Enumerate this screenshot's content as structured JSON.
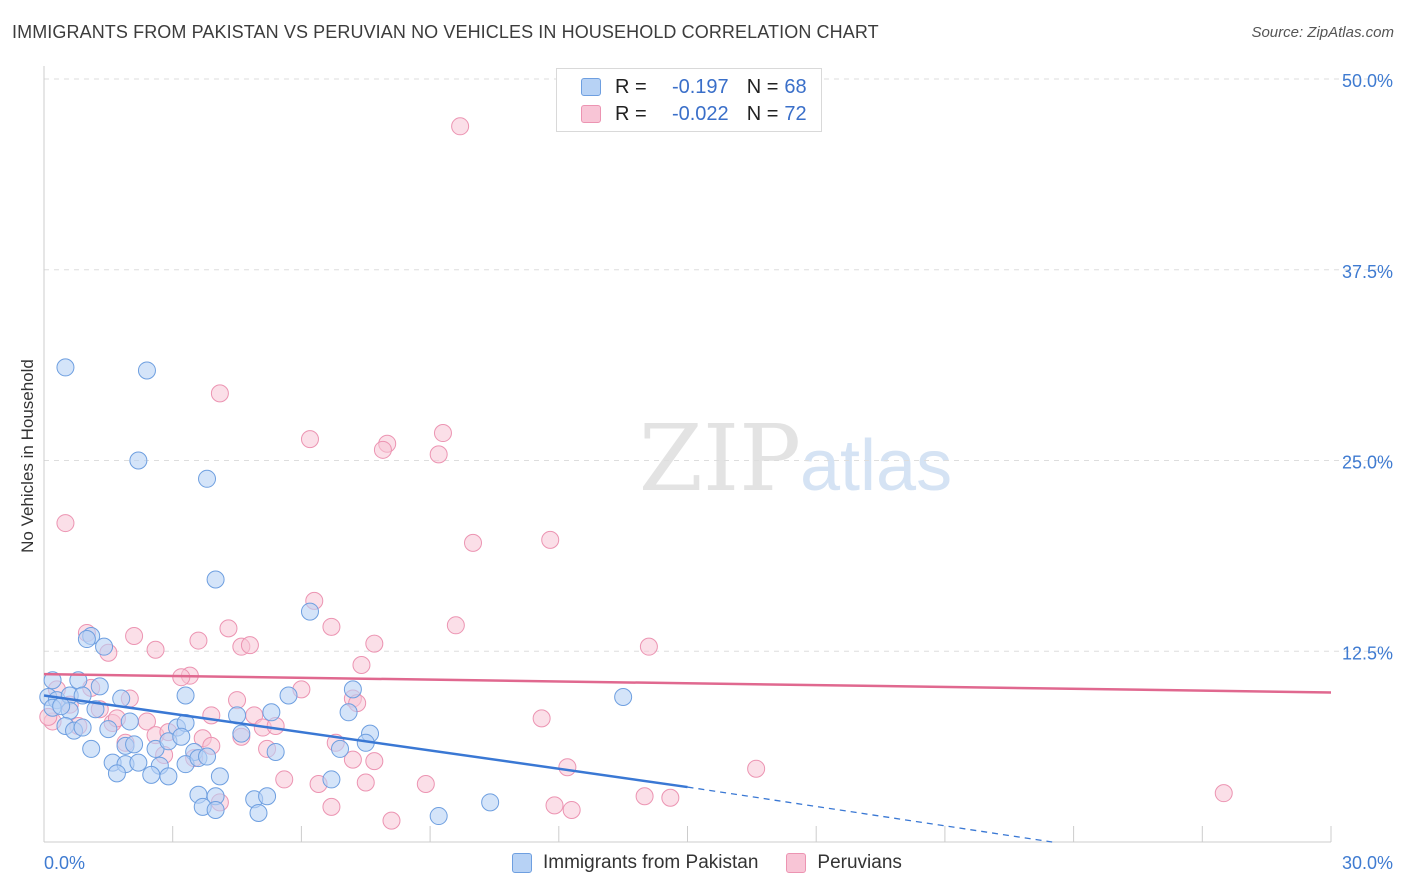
{
  "header": {
    "title": "IMMIGRANTS FROM PAKISTAN VS PERUVIAN NO VEHICLES IN HOUSEHOLD CORRELATION CHART",
    "source": "Source: ZipAtlas.com"
  },
  "watermark": {
    "zip": "ZIP",
    "atlas": "atlas"
  },
  "legend": {
    "r_label": "R =",
    "n_label": "N =",
    "series1": {
      "r": "-0.197",
      "n": "68"
    },
    "series2": {
      "r": "-0.022",
      "n": "72"
    }
  },
  "bottom_legend": {
    "series1": "Immigrants from Pakistan",
    "series2": "Peruvians"
  },
  "colors": {
    "blue_fill": "#b7d2f5",
    "blue_stroke": "#6e9fe0",
    "blue_line": "#3a78d4",
    "pink_fill": "#f8c5d6",
    "pink_stroke": "#ec94b2",
    "pink_line": "#e0688f",
    "tick_text": "#3f7bd1",
    "grid": "#dddddd"
  },
  "chart_data": {
    "type": "scatter",
    "title": "IMMIGRANTS FROM PAKISTAN VS PERUVIAN NO VEHICLES IN HOUSEHOLD CORRELATION CHART",
    "xlabel": "",
    "ylabel": "No Vehicles in Household",
    "xlim": [
      0,
      30
    ],
    "ylim": [
      0,
      50
    ],
    "x_tick_labels": [
      "0.0%",
      "30.0%"
    ],
    "y_ticks": [
      12.5,
      25.0,
      37.5,
      50.0
    ],
    "y_tick_labels": [
      "12.5%",
      "25.0%",
      "37.5%",
      "50.0%"
    ],
    "series": [
      {
        "name": "Immigrants from Pakistan",
        "r": -0.197,
        "n": 68,
        "trend": {
          "x": [
            0,
            15
          ],
          "y": [
            9.6,
            3.6
          ],
          "dashed_to": [
            23.5,
            0
          ]
        },
        "points": [
          [
            0.5,
            31.1
          ],
          [
            2.4,
            30.9
          ],
          [
            2.2,
            25.0
          ],
          [
            3.8,
            23.8
          ],
          [
            4.0,
            17.2
          ],
          [
            6.2,
            15.1
          ],
          [
            1.1,
            13.5
          ],
          [
            1.4,
            12.8
          ],
          [
            1.0,
            13.3
          ],
          [
            0.2,
            10.6
          ],
          [
            0.8,
            10.6
          ],
          [
            1.3,
            10.2
          ],
          [
            0.1,
            9.5
          ],
          [
            0.3,
            9.3
          ],
          [
            0.6,
            9.6
          ],
          [
            0.9,
            9.6
          ],
          [
            1.8,
            9.4
          ],
          [
            3.3,
            9.6
          ],
          [
            5.7,
            9.6
          ],
          [
            7.2,
            10.0
          ],
          [
            13.5,
            9.5
          ],
          [
            0.2,
            8.8
          ],
          [
            0.6,
            8.6
          ],
          [
            1.2,
            8.7
          ],
          [
            4.5,
            8.3
          ],
          [
            5.3,
            8.5
          ],
          [
            7.1,
            8.5
          ],
          [
            0.5,
            7.6
          ],
          [
            0.7,
            7.3
          ],
          [
            0.9,
            7.5
          ],
          [
            1.5,
            7.4
          ],
          [
            3.1,
            7.5
          ],
          [
            3.3,
            7.8
          ],
          [
            4.6,
            7.1
          ],
          [
            7.6,
            7.1
          ],
          [
            1.9,
            6.3
          ],
          [
            2.1,
            6.4
          ],
          [
            2.6,
            6.1
          ],
          [
            2.9,
            6.6
          ],
          [
            3.2,
            6.9
          ],
          [
            3.5,
            5.9
          ],
          [
            5.4,
            5.9
          ],
          [
            7.5,
            6.5
          ],
          [
            6.9,
            6.1
          ],
          [
            1.6,
            5.2
          ],
          [
            1.9,
            5.1
          ],
          [
            2.2,
            5.2
          ],
          [
            2.7,
            5.0
          ],
          [
            3.3,
            5.1
          ],
          [
            3.6,
            5.5
          ],
          [
            1.7,
            4.5
          ],
          [
            2.5,
            4.4
          ],
          [
            2.9,
            4.3
          ],
          [
            4.1,
            4.3
          ],
          [
            6.7,
            4.1
          ],
          [
            3.6,
            3.1
          ],
          [
            4.0,
            3.0
          ],
          [
            4.9,
            2.8
          ],
          [
            5.2,
            3.0
          ],
          [
            10.4,
            2.6
          ],
          [
            3.7,
            2.3
          ],
          [
            4.0,
            2.1
          ],
          [
            5.0,
            1.9
          ],
          [
            9.2,
            1.7
          ],
          [
            0.4,
            8.9
          ],
          [
            1.1,
            6.1
          ],
          [
            2.0,
            7.9
          ],
          [
            3.8,
            5.6
          ]
        ]
      },
      {
        "name": "Peruvians",
        "r": -0.022,
        "n": 72,
        "trend": {
          "x": [
            0,
            30
          ],
          "y": [
            11.0,
            9.8
          ]
        },
        "points": [
          [
            9.7,
            46.9
          ],
          [
            4.1,
            29.4
          ],
          [
            6.2,
            26.4
          ],
          [
            8.0,
            26.1
          ],
          [
            7.9,
            25.7
          ],
          [
            9.3,
            26.8
          ],
          [
            9.2,
            25.4
          ],
          [
            0.5,
            20.9
          ],
          [
            10.0,
            19.6
          ],
          [
            11.8,
            19.8
          ],
          [
            6.3,
            15.8
          ],
          [
            4.3,
            14.0
          ],
          [
            6.7,
            14.1
          ],
          [
            9.6,
            14.2
          ],
          [
            1.0,
            13.7
          ],
          [
            2.1,
            13.5
          ],
          [
            3.6,
            13.2
          ],
          [
            4.6,
            12.8
          ],
          [
            4.8,
            12.9
          ],
          [
            7.7,
            13.0
          ],
          [
            14.1,
            12.8
          ],
          [
            1.5,
            12.4
          ],
          [
            2.6,
            12.6
          ],
          [
            7.4,
            11.6
          ],
          [
            3.4,
            10.9
          ],
          [
            3.2,
            10.8
          ],
          [
            0.3,
            10.0
          ],
          [
            1.1,
            10.1
          ],
          [
            2.0,
            9.4
          ],
          [
            4.5,
            9.3
          ],
          [
            6.0,
            10.0
          ],
          [
            7.2,
            9.4
          ],
          [
            0.6,
            9.0
          ],
          [
            1.3,
            8.7
          ],
          [
            3.9,
            8.3
          ],
          [
            4.9,
            8.3
          ],
          [
            7.3,
            9.1
          ],
          [
            11.6,
            8.1
          ],
          [
            0.2,
            7.9
          ],
          [
            0.8,
            7.6
          ],
          [
            1.6,
            7.8
          ],
          [
            2.4,
            7.9
          ],
          [
            5.1,
            7.5
          ],
          [
            5.4,
            7.6
          ],
          [
            2.6,
            7.0
          ],
          [
            3.7,
            6.8
          ],
          [
            4.6,
            6.9
          ],
          [
            1.9,
            6.5
          ],
          [
            3.9,
            6.3
          ],
          [
            5.2,
            6.1
          ],
          [
            6.8,
            6.5
          ],
          [
            2.8,
            5.7
          ],
          [
            3.5,
            5.5
          ],
          [
            7.2,
            5.4
          ],
          [
            7.7,
            5.3
          ],
          [
            12.2,
            4.9
          ],
          [
            16.6,
            4.8
          ],
          [
            5.6,
            4.1
          ],
          [
            6.4,
            3.8
          ],
          [
            7.5,
            3.9
          ],
          [
            8.9,
            3.8
          ],
          [
            14.0,
            3.0
          ],
          [
            14.6,
            2.9
          ],
          [
            27.5,
            3.2
          ],
          [
            4.1,
            2.6
          ],
          [
            6.7,
            2.3
          ],
          [
            11.9,
            2.4
          ],
          [
            12.3,
            2.1
          ],
          [
            8.1,
            1.4
          ],
          [
            0.1,
            8.2
          ],
          [
            1.7,
            8.1
          ],
          [
            2.9,
            7.2
          ]
        ]
      }
    ]
  }
}
